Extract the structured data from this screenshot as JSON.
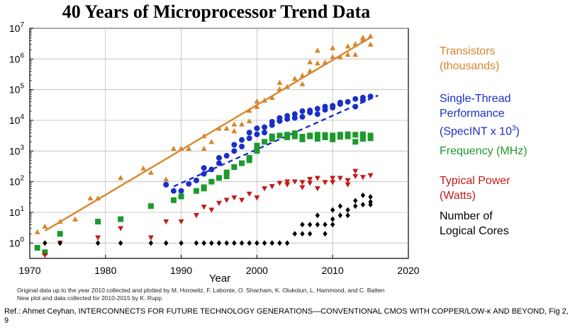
{
  "title": "40 Years of Microprocessor Trend Data",
  "chart_data": {
    "type": "scatter",
    "title": "40 Years of Microprocessor Trend Data",
    "xlabel": "Year",
    "ylabel": "",
    "xlim": [
      1970,
      2020
    ],
    "ylim_log10": [
      -0.5,
      7
    ],
    "yscale": "log",
    "x_ticks": [
      "1970",
      "1980",
      "1990",
      "2000",
      "2010",
      "2020"
    ],
    "y_ticks": [
      {
        "base": "10",
        "exp": "0"
      },
      {
        "base": "10",
        "exp": "1"
      },
      {
        "base": "10",
        "exp": "2"
      },
      {
        "base": "10",
        "exp": "3"
      },
      {
        "base": "10",
        "exp": "4"
      },
      {
        "base": "10",
        "exp": "5"
      },
      {
        "base": "10",
        "exp": "6"
      },
      {
        "base": "10",
        "exp": "7"
      }
    ],
    "series": [
      {
        "name": "Transistors (thousands)",
        "color": "#d8862c",
        "marker": "triangle-up",
        "points": [
          [
            1971,
            2.3
          ],
          [
            1972,
            3.5
          ],
          [
            1974,
            5
          ],
          [
            1976,
            6
          ],
          [
            1978,
            29
          ],
          [
            1979,
            29
          ],
          [
            1982,
            134
          ],
          [
            1985,
            275
          ],
          [
            1986,
            200
          ],
          [
            1988,
            120
          ],
          [
            1989,
            1200
          ],
          [
            1990,
            1200
          ],
          [
            1991,
            1200
          ],
          [
            1993,
            1200
          ],
          [
            1993,
            3100
          ],
          [
            1994,
            2000
          ],
          [
            1995,
            5500
          ],
          [
            1996,
            5500
          ],
          [
            1997,
            7500
          ],
          [
            1997,
            4500
          ],
          [
            1998,
            7500
          ],
          [
            1999,
            9500
          ],
          [
            1999,
            21000
          ],
          [
            2000,
            28000
          ],
          [
            2000,
            42000
          ],
          [
            2001,
            45000
          ],
          [
            2002,
            55000
          ],
          [
            2003,
            106000
          ],
          [
            2003,
            170000
          ],
          [
            2004,
            125000
          ],
          [
            2005,
            230000
          ],
          [
            2006,
            291000
          ],
          [
            2006,
            154000
          ],
          [
            2007,
            410000
          ],
          [
            2007,
            800000
          ],
          [
            2008,
            731000
          ],
          [
            2008,
            1900000
          ],
          [
            2009,
            774000
          ],
          [
            2010,
            1170000
          ],
          [
            2010,
            2300000
          ],
          [
            2011,
            1160000
          ],
          [
            2012,
            1400000
          ],
          [
            2012,
            2600000
          ],
          [
            2013,
            3100000
          ],
          [
            2013,
            1400000
          ],
          [
            2014,
            4300000
          ],
          [
            2014,
            5000000
          ],
          [
            2015,
            5600000
          ],
          [
            2015,
            3000000
          ]
        ],
        "trend": [
          [
            1972,
            2.5
          ],
          [
            2015,
            5000000
          ]
        ]
      },
      {
        "name": "Single-Thread Performance (SpecINT x 10^3)",
        "color": "#1a2fc8",
        "marker": "circle",
        "points": [
          [
            1988,
            80
          ],
          [
            1989,
            50
          ],
          [
            1990,
            50
          ],
          [
            1991,
            85
          ],
          [
            1992,
            110
          ],
          [
            1993,
            180
          ],
          [
            1993,
            280
          ],
          [
            1994,
            250
          ],
          [
            1995,
            400
          ],
          [
            1995,
            600
          ],
          [
            1996,
            700
          ],
          [
            1997,
            1000
          ],
          [
            1997,
            1600
          ],
          [
            1998,
            1400
          ],
          [
            1998,
            2300
          ],
          [
            1999,
            2600
          ],
          [
            1999,
            4000
          ],
          [
            2000,
            3500
          ],
          [
            2000,
            5500
          ],
          [
            2001,
            6000
          ],
          [
            2001,
            4000
          ],
          [
            2002,
            7000
          ],
          [
            2002,
            9000
          ],
          [
            2003,
            9500
          ],
          [
            2003,
            12000
          ],
          [
            2004,
            11000
          ],
          [
            2004,
            14000
          ],
          [
            2005,
            12000
          ],
          [
            2005,
            16000
          ],
          [
            2006,
            13000
          ],
          [
            2006,
            20000
          ],
          [
            2007,
            18000
          ],
          [
            2007,
            21000
          ],
          [
            2008,
            24000
          ],
          [
            2008,
            16000
          ],
          [
            2009,
            28000
          ],
          [
            2009,
            22000
          ],
          [
            2010,
            30000
          ],
          [
            2010,
            26000
          ],
          [
            2011,
            38000
          ],
          [
            2011,
            34000
          ],
          [
            2012,
            40000
          ],
          [
            2013,
            50000
          ],
          [
            2013,
            28000
          ],
          [
            2014,
            55000
          ],
          [
            2014,
            45000
          ],
          [
            2015,
            60000
          ]
        ],
        "trend": [
          [
            1989,
            70
          ],
          [
            2016,
            65000
          ]
        ]
      },
      {
        "name": "Frequency (MHz)",
        "color": "#1d9a2a",
        "marker": "square",
        "points": [
          [
            1971,
            0.7
          ],
          [
            1972,
            0.5
          ],
          [
            1974,
            2
          ],
          [
            1979,
            5
          ],
          [
            1982,
            6
          ],
          [
            1986,
            16
          ],
          [
            1989,
            25
          ],
          [
            1990,
            33
          ],
          [
            1992,
            50
          ],
          [
            1993,
            66
          ],
          [
            1993,
            60
          ],
          [
            1994,
            100
          ],
          [
            1995,
            133
          ],
          [
            1996,
            200
          ],
          [
            1996,
            150
          ],
          [
            1997,
            300
          ],
          [
            1998,
            400
          ],
          [
            1999,
            600
          ],
          [
            1999,
            500
          ],
          [
            2000,
            1000
          ],
          [
            2000,
            1500
          ],
          [
            2001,
            2000
          ],
          [
            2002,
            2500
          ],
          [
            2002,
            3000
          ],
          [
            2003,
            3200
          ],
          [
            2004,
            3400
          ],
          [
            2004,
            2800
          ],
          [
            2005,
            3000
          ],
          [
            2005,
            3800
          ],
          [
            2006,
            2400
          ],
          [
            2006,
            2930
          ],
          [
            2007,
            3000
          ],
          [
            2007,
            3200
          ],
          [
            2008,
            3400
          ],
          [
            2008,
            2500
          ],
          [
            2009,
            3330
          ],
          [
            2009,
            2800
          ],
          [
            2010,
            3200
          ],
          [
            2010,
            2400
          ],
          [
            2011,
            3400
          ],
          [
            2011,
            2900
          ],
          [
            2012,
            3500
          ],
          [
            2012,
            3000
          ],
          [
            2013,
            3400
          ],
          [
            2013,
            2000
          ],
          [
            2014,
            3500
          ],
          [
            2014,
            2500
          ],
          [
            2015,
            3200
          ],
          [
            2015,
            2600
          ]
        ]
      },
      {
        "name": "Typical Power (Watts)",
        "color": "#c21a1a",
        "marker": "triangle-down",
        "points": [
          [
            1972,
            0.4
          ],
          [
            1974,
            1
          ],
          [
            1979,
            1.5
          ],
          [
            1982,
            3
          ],
          [
            1986,
            1.5
          ],
          [
            1988,
            5
          ],
          [
            1990,
            5
          ],
          [
            1992,
            8
          ],
          [
            1993,
            15
          ],
          [
            1994,
            12
          ],
          [
            1995,
            20
          ],
          [
            1996,
            25
          ],
          [
            1997,
            30
          ],
          [
            1998,
            25
          ],
          [
            1999,
            40
          ],
          [
            2000,
            30
          ],
          [
            2001,
            60
          ],
          [
            2002,
            70
          ],
          [
            2003,
            90
          ],
          [
            2004,
            100
          ],
          [
            2004,
            80
          ],
          [
            2005,
            100
          ],
          [
            2006,
            95
          ],
          [
            2006,
            65
          ],
          [
            2007,
            120
          ],
          [
            2007,
            90
          ],
          [
            2008,
            130
          ],
          [
            2008,
            60
          ],
          [
            2009,
            95
          ],
          [
            2010,
            130
          ],
          [
            2010,
            95
          ],
          [
            2011,
            130
          ],
          [
            2012,
            110
          ],
          [
            2012,
            80
          ],
          [
            2013,
            150
          ],
          [
            2013,
            220
          ],
          [
            2014,
            140
          ],
          [
            2015,
            160
          ]
        ]
      },
      {
        "name": "Number of Logical Cores",
        "color": "#000000",
        "marker": "diamond",
        "points": [
          [
            1972,
            1
          ],
          [
            1974,
            1
          ],
          [
            1979,
            1
          ],
          [
            1982,
            1
          ],
          [
            1986,
            1
          ],
          [
            1988,
            1
          ],
          [
            1990,
            1
          ],
          [
            1992,
            1
          ],
          [
            1993,
            1
          ],
          [
            1994,
            1
          ],
          [
            1995,
            1
          ],
          [
            1996,
            1
          ],
          [
            1997,
            1
          ],
          [
            1998,
            1
          ],
          [
            1999,
            1
          ],
          [
            2000,
            1
          ],
          [
            2001,
            1
          ],
          [
            2002,
            1
          ],
          [
            2003,
            1
          ],
          [
            2004,
            1
          ],
          [
            2005,
            2
          ],
          [
            2006,
            2
          ],
          [
            2006,
            4
          ],
          [
            2007,
            2
          ],
          [
            2007,
            4
          ],
          [
            2008,
            4
          ],
          [
            2008,
            8
          ],
          [
            2009,
            4
          ],
          [
            2009,
            2
          ],
          [
            2010,
            6
          ],
          [
            2010,
            12
          ],
          [
            2010,
            4
          ],
          [
            2011,
            8
          ],
          [
            2011,
            16
          ],
          [
            2012,
            8
          ],
          [
            2012,
            12
          ],
          [
            2013,
            16
          ],
          [
            2013,
            24
          ],
          [
            2014,
            18
          ],
          [
            2014,
            36
          ],
          [
            2015,
            22
          ],
          [
            2015,
            32
          ],
          [
            2015,
            18
          ]
        ]
      }
    ]
  },
  "legend": [
    {
      "lines": [
        "Transistors",
        "(thousands)"
      ],
      "color": "#d8862c"
    },
    {
      "lines": [
        "Single-Thread",
        "Performance",
        "(SpecINT x 10"
      ],
      "sup": "3",
      "suffix": ")",
      "color": "#1a2fc8"
    },
    {
      "lines": [
        "Frequency (MHz)"
      ],
      "color": "#1d9a2a"
    },
    {
      "lines": [
        "Typical Power",
        "(Watts)"
      ],
      "color": "#c21a1a"
    },
    {
      "lines": [
        "Number of",
        "Logical Cores"
      ],
      "color": "#000000"
    }
  ],
  "notes": {
    "line1": "Original data up to the year 2010 collected and plotted by M. Horowitz, F. Labonte, O. Shacham, K. Olukotun, L. Hammond, and C. Batten",
    "line2": "New plot and data collected for 2010-2015 by K. Rupp"
  },
  "reference": "Ref.: Ahmet Ceyhan, INTERCONNECTS FOR FUTURE TECHNOLOGY GENERATIONS—CONVENTIONAL CMOS WITH COPPER/LOW-κ AND BEYOND, Fig 2, 9"
}
